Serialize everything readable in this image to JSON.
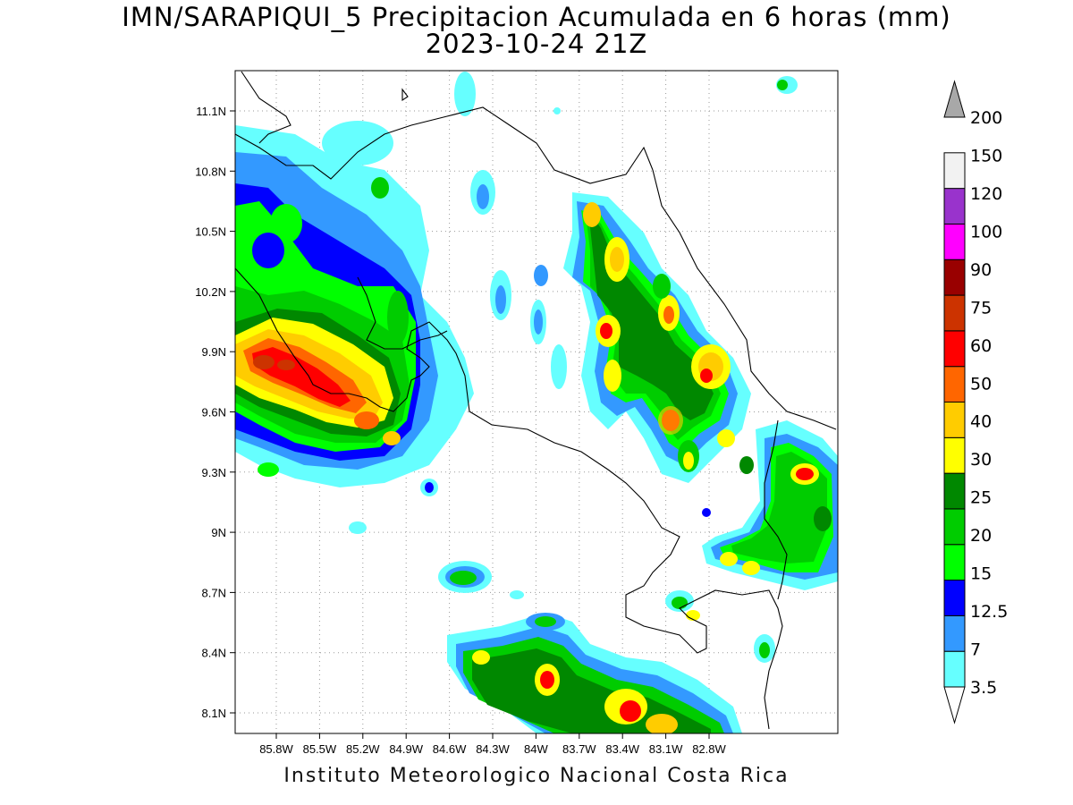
{
  "title": {
    "line1": "IMN/SARAPIQUI_5 Precipitacion Acumulada en 6 horas (mm)",
    "line2": "2023-10-24 21Z"
  },
  "footer": "Instituto Meteorologico Nacional Costa Rica",
  "map": {
    "lon_labels": [
      "85.8W",
      "85.5W",
      "85.2W",
      "84.9W",
      "84.6W",
      "84.3W",
      "84W",
      "83.7W",
      "83.4W",
      "83.1W",
      "82.8W"
    ],
    "lat_labels": [
      "11.1N",
      "10.8N",
      "10.5N",
      "10.2N",
      "9.9N",
      "9.6N",
      "9.3N",
      "9N",
      "8.7N",
      "8.4N",
      "8.1N"
    ]
  },
  "colorbar": {
    "levels": [
      "3.5",
      "7",
      "12.5",
      "15",
      "20",
      "25",
      "30",
      "40",
      "50",
      "60",
      "75",
      "90",
      "100",
      "120",
      "150",
      "200"
    ],
    "colors": [
      "#66ffff",
      "#3399ff",
      "#0000ff",
      "#00ff00",
      "#00cc00",
      "#008800",
      "#ffff00",
      "#ffcc00",
      "#ff6600",
      "#ff0000",
      "#cc3300",
      "#990000",
      "#ff00ff",
      "#9933cc",
      "#f2f2f2",
      "#a8a8a8"
    ]
  }
}
